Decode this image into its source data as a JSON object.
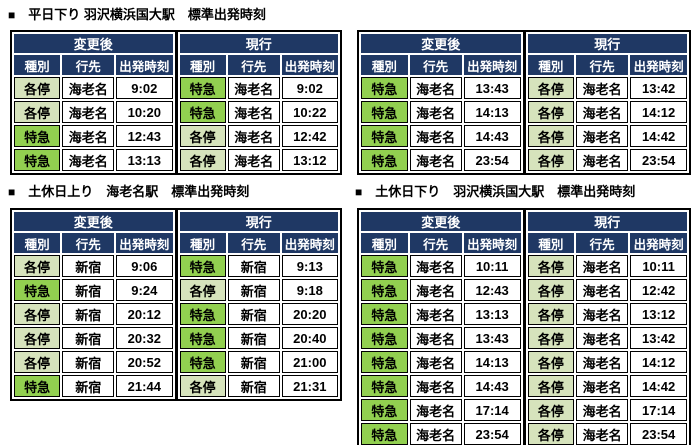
{
  "colors": {
    "header_navy": "#1F3864",
    "express_green": "#92D050",
    "local_green": "#D6E3BC",
    "cell_border": "#000000",
    "header_text": "#FFFFFF",
    "body_text": "#000000",
    "type_colors": {
      "特急": "#92D050",
      "各停": "#D6E3BC"
    }
  },
  "group_headers": {
    "after": "変更後",
    "current": "現行"
  },
  "columns": {
    "type": "種別",
    "dest": "行先",
    "time": "出発時刻"
  },
  "tables": [
    {
      "title_marker": "■",
      "title": "平日下り 羽沢横浜国大駅　標準出発時刻",
      "rows": [
        {
          "after": {
            "type": "各停",
            "dest": "海老名",
            "time": "9:02"
          },
          "current": {
            "type": "特急",
            "dest": "海老名",
            "time": "9:02"
          }
        },
        {
          "after": {
            "type": "各停",
            "dest": "海老名",
            "time": "10:20"
          },
          "current": {
            "type": "特急",
            "dest": "海老名",
            "time": "10:22"
          }
        },
        {
          "after": {
            "type": "特急",
            "dest": "海老名",
            "time": "12:43"
          },
          "current": {
            "type": "各停",
            "dest": "海老名",
            "time": "12:42"
          }
        },
        {
          "after": {
            "type": "特急",
            "dest": "海老名",
            "time": "13:13"
          },
          "current": {
            "type": "各停",
            "dest": "海老名",
            "time": "13:12"
          }
        }
      ]
    },
    {
      "title_marker": "",
      "title": "",
      "rows": [
        {
          "after": {
            "type": "特急",
            "dest": "海老名",
            "time": "13:43"
          },
          "current": {
            "type": "各停",
            "dest": "海老名",
            "time": "13:42"
          }
        },
        {
          "after": {
            "type": "特急",
            "dest": "海老名",
            "time": "14:13"
          },
          "current": {
            "type": "各停",
            "dest": "海老名",
            "time": "14:12"
          }
        },
        {
          "after": {
            "type": "特急",
            "dest": "海老名",
            "time": "14:43"
          },
          "current": {
            "type": "各停",
            "dest": "海老名",
            "time": "14:42"
          }
        },
        {
          "after": {
            "type": "特急",
            "dest": "海老名",
            "time": "23:54"
          },
          "current": {
            "type": "各停",
            "dest": "海老名",
            "time": "23:54"
          }
        }
      ]
    },
    {
      "title_marker": "■",
      "title": "土休日上り　海老名駅　標準出発時刻",
      "rows": [
        {
          "after": {
            "type": "各停",
            "dest": "新宿",
            "time": "9:06"
          },
          "current": {
            "type": "特急",
            "dest": "新宿",
            "time": "9:13"
          }
        },
        {
          "after": {
            "type": "特急",
            "dest": "新宿",
            "time": "9:24"
          },
          "current": {
            "type": "各停",
            "dest": "新宿",
            "time": "9:18"
          }
        },
        {
          "after": {
            "type": "各停",
            "dest": "新宿",
            "time": "20:12"
          },
          "current": {
            "type": "特急",
            "dest": "新宿",
            "time": "20:20"
          }
        },
        {
          "after": {
            "type": "各停",
            "dest": "新宿",
            "time": "20:32"
          },
          "current": {
            "type": "特急",
            "dest": "新宿",
            "time": "20:40"
          }
        },
        {
          "after": {
            "type": "各停",
            "dest": "新宿",
            "time": "20:52"
          },
          "current": {
            "type": "特急",
            "dest": "新宿",
            "time": "21:00"
          }
        },
        {
          "after": {
            "type": "特急",
            "dest": "新宿",
            "time": "21:44"
          },
          "current": {
            "type": "各停",
            "dest": "新宿",
            "time": "21:31"
          }
        }
      ]
    },
    {
      "title_marker": "■",
      "title": "土休日下り　羽沢横浜国大駅　標準出発時刻",
      "rows": [
        {
          "after": {
            "type": "特急",
            "dest": "海老名",
            "time": "10:11"
          },
          "current": {
            "type": "各停",
            "dest": "海老名",
            "time": "10:11"
          }
        },
        {
          "after": {
            "type": "特急",
            "dest": "海老名",
            "time": "12:43"
          },
          "current": {
            "type": "各停",
            "dest": "海老名",
            "time": "12:42"
          }
        },
        {
          "after": {
            "type": "特急",
            "dest": "海老名",
            "time": "13:13"
          },
          "current": {
            "type": "各停",
            "dest": "海老名",
            "time": "13:12"
          }
        },
        {
          "after": {
            "type": "特急",
            "dest": "海老名",
            "time": "13:43"
          },
          "current": {
            "type": "各停",
            "dest": "海老名",
            "time": "13:42"
          }
        },
        {
          "after": {
            "type": "特急",
            "dest": "海老名",
            "time": "14:13"
          },
          "current": {
            "type": "各停",
            "dest": "海老名",
            "time": "14:12"
          }
        },
        {
          "after": {
            "type": "特急",
            "dest": "海老名",
            "time": "14:43"
          },
          "current": {
            "type": "各停",
            "dest": "海老名",
            "time": "14:42"
          }
        },
        {
          "after": {
            "type": "特急",
            "dest": "海老名",
            "time": "17:14"
          },
          "current": {
            "type": "各停",
            "dest": "海老名",
            "time": "17:14"
          }
        },
        {
          "after": {
            "type": "特急",
            "dest": "海老名",
            "time": "23:54"
          },
          "current": {
            "type": "各停",
            "dest": "海老名",
            "time": "23:54"
          }
        }
      ]
    }
  ]
}
